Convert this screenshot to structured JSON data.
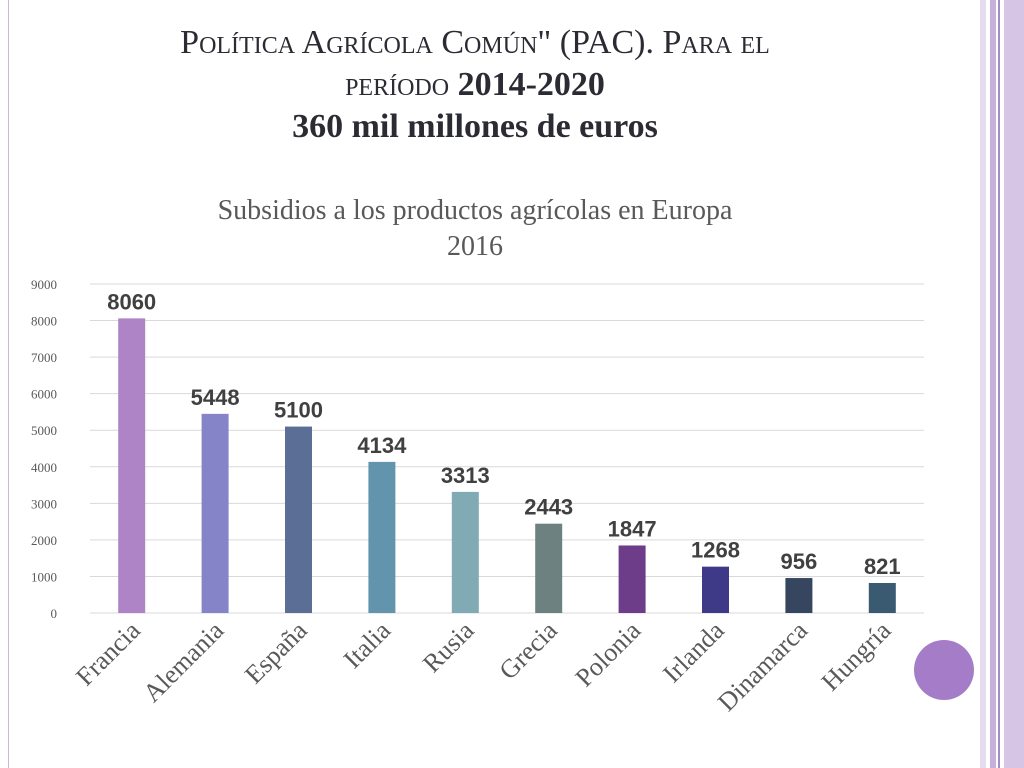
{
  "slide": {
    "title_line1": "Política Agrícola Común\" (PAC). Para el",
    "title_line2_prefix": "período ",
    "title_line2_years": "2014-2020",
    "title_line3": "360 mil millones de euros"
  },
  "chart_data": {
    "type": "bar",
    "title": "Subsidios a los productos agrícolas en Europa",
    "subtitle": "2016",
    "xlabel": "",
    "ylabel": "",
    "ylim": [
      0,
      9000
    ],
    "yticks": [
      0,
      1000,
      2000,
      3000,
      4000,
      5000,
      6000,
      7000,
      8000,
      9000
    ],
    "grid": true,
    "legend": "none",
    "categories": [
      "Francia",
      "Alemania",
      "España",
      "Italia",
      "Rusia",
      "Grecia",
      "Polonia",
      "Irlanda",
      "Dinamarca",
      "Hungría"
    ],
    "values": [
      8060,
      5448,
      5100,
      4134,
      3313,
      2443,
      1847,
      1268,
      956,
      821
    ],
    "colors": [
      "#ae84c6",
      "#8584c8",
      "#5b6e96",
      "#6394ae",
      "#80abb4",
      "#6d8180",
      "#6e3d8a",
      "#3f3a87",
      "#36465f",
      "#395a71"
    ]
  },
  "theme": {
    "accent_circle": "#a57cc8",
    "side_bar_colors": [
      "#d9c7e6",
      "#b89acf",
      "#e8dcf0"
    ]
  }
}
